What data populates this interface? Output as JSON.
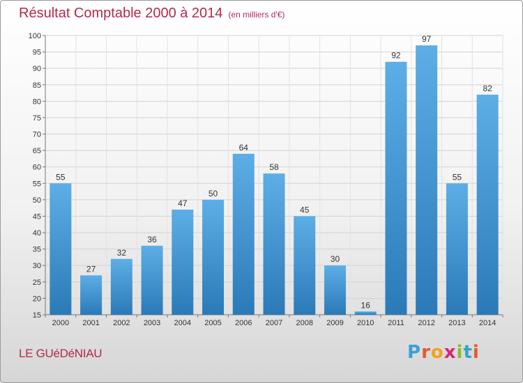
{
  "header": {
    "title": "Résultat Comptable 2000 à 2014",
    "subtitle": "(en milliers d'€)"
  },
  "footer": {
    "place": "LE GUéDéNIAU",
    "logo_text": "Proxiti"
  },
  "colors": {
    "title": "#b22a4d",
    "bar_top": "#5daee6",
    "bar_bottom": "#2a7ab8"
  },
  "chart_data": {
    "type": "bar",
    "title": "Résultat Comptable 2000 à 2014",
    "subtitle": "(en milliers d'€)",
    "categories": [
      "2000",
      "2001",
      "2002",
      "2003",
      "2004",
      "2005",
      "2006",
      "2007",
      "2008",
      "2009",
      "2010",
      "2011",
      "2012",
      "2013",
      "2014"
    ],
    "values": [
      55,
      27,
      32,
      36,
      47,
      50,
      64,
      58,
      45,
      30,
      16,
      92,
      97,
      55,
      82
    ],
    "ylim": [
      15,
      100
    ],
    "yticks": [
      15,
      20,
      25,
      30,
      35,
      40,
      45,
      50,
      55,
      60,
      65,
      70,
      75,
      80,
      85,
      90,
      95,
      100
    ],
    "grid": true,
    "data_labels": true
  }
}
